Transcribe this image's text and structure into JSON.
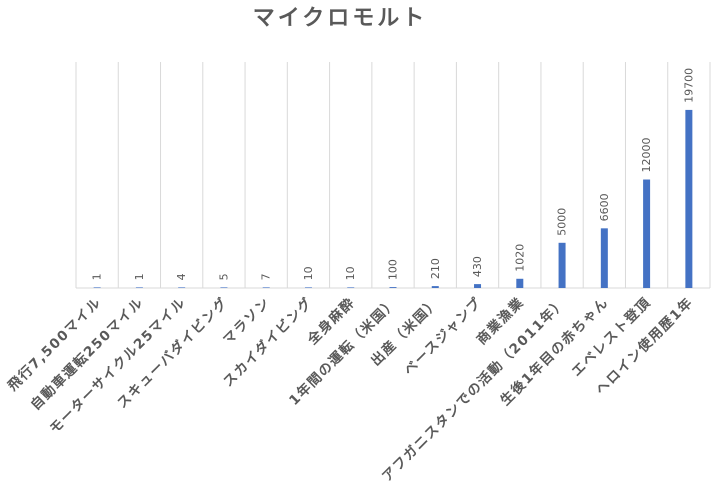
{
  "chart_data": {
    "type": "bar",
    "title": "マイクロモルト",
    "xlabel": "",
    "ylabel": "",
    "categories": [
      "飛行7,500マイル",
      "自動車運転250マイル",
      "モーターサイクル25マイル",
      "スキューバダイビング",
      "マラソン",
      "スカイダイビング",
      "全身麻酔",
      "1年間の運転（米国）",
      "出産（米国）",
      "ベースジャンプ",
      "商業漁業",
      "アフガニスタンでの活動（2011年）",
      "生後1年目の赤ちゃん",
      "エベレスト登頂",
      "ヘロイン使用歴1年"
    ],
    "values": [
      1,
      1,
      4,
      5,
      7,
      10,
      10,
      100,
      210,
      430,
      1020,
      5000,
      6600,
      12000,
      19700
    ],
    "ylim": [
      0,
      25000
    ],
    "grid": "vertical",
    "legend": "none",
    "data_labels": true,
    "bar_color": "#4472c4",
    "label_color": "#595959",
    "grid_color": "#d9d9d9"
  }
}
